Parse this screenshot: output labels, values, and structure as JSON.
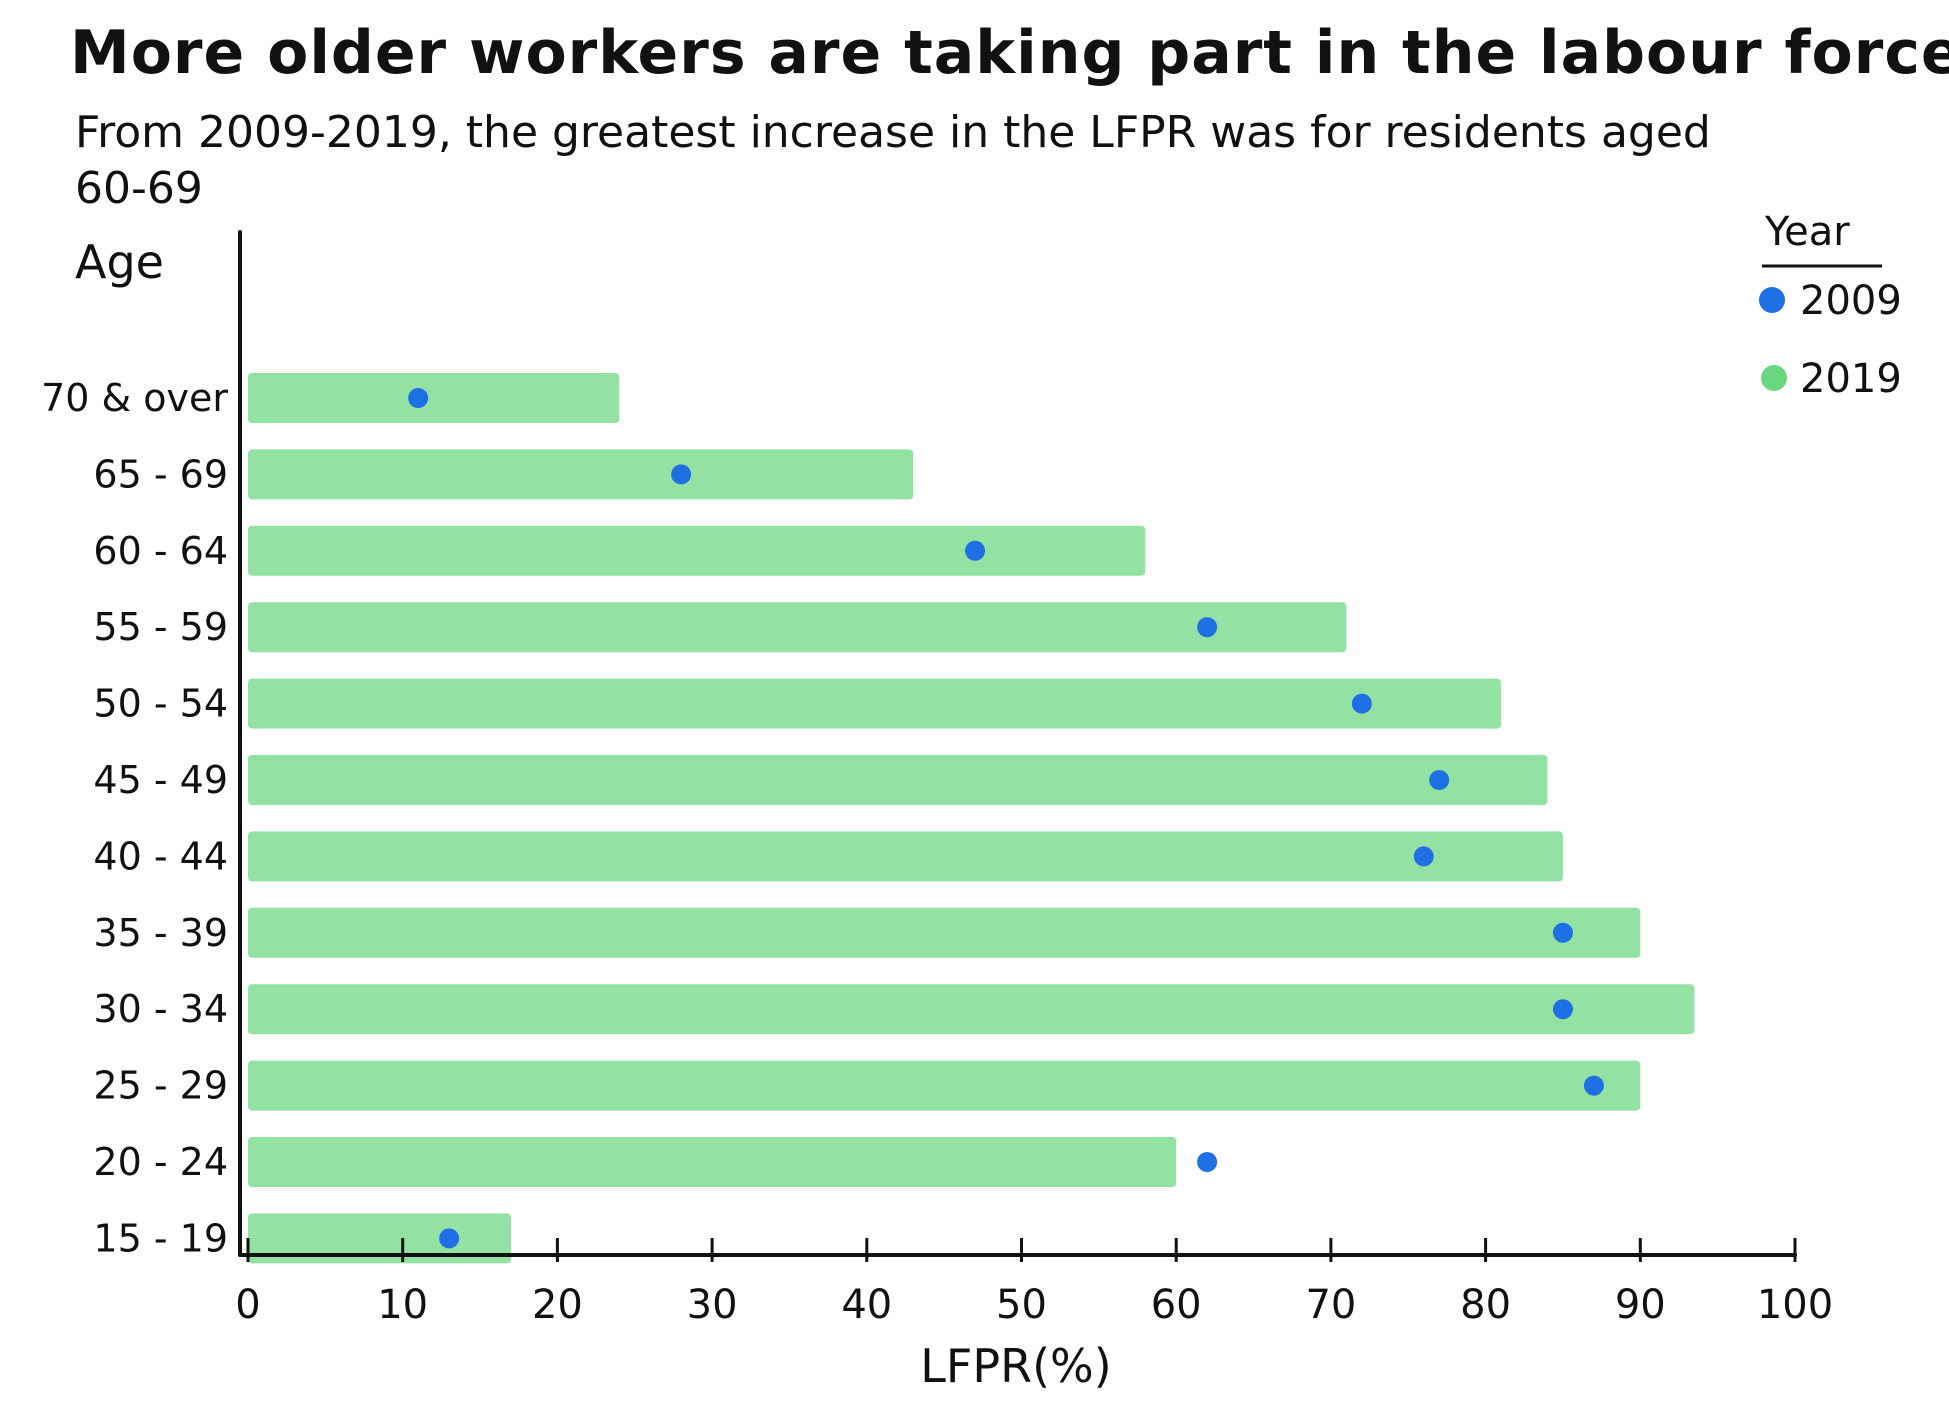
{
  "chart_data": {
    "type": "bar",
    "title": "More older workers are taking part in the labour force",
    "subtitle": "From 2009-2019, the greatest increase in the LFPR was for residents aged 60-69",
    "xlabel": "LFPR(%)",
    "ylabel": "Age",
    "xlim": [
      0,
      100
    ],
    "xticks": [
      0,
      10,
      20,
      30,
      40,
      50,
      60,
      70,
      80,
      90,
      100
    ],
    "categories": [
      "70 & over",
      "65 - 69",
      "60 - 64",
      "55 - 59",
      "50 - 54",
      "45 - 49",
      "40 - 44",
      "35 - 39",
      "30 - 34",
      "25 - 29",
      "20 - 24",
      "15 - 19"
    ],
    "series": [
      {
        "name": "2019",
        "mark": "bar",
        "color": "#6ad67f",
        "values": [
          24,
          43,
          58,
          71,
          81,
          84,
          85,
          90,
          93.5,
          90,
          60,
          17
        ]
      },
      {
        "name": "2009",
        "mark": "dot",
        "color": "#1f6fe5",
        "values": [
          11,
          28,
          47,
          62,
          72,
          77,
          76,
          85,
          85,
          87,
          62,
          13
        ]
      }
    ],
    "legend": {
      "title": "Year",
      "position": "top-right",
      "entries": [
        "2009",
        "2019"
      ]
    },
    "grid": false
  }
}
